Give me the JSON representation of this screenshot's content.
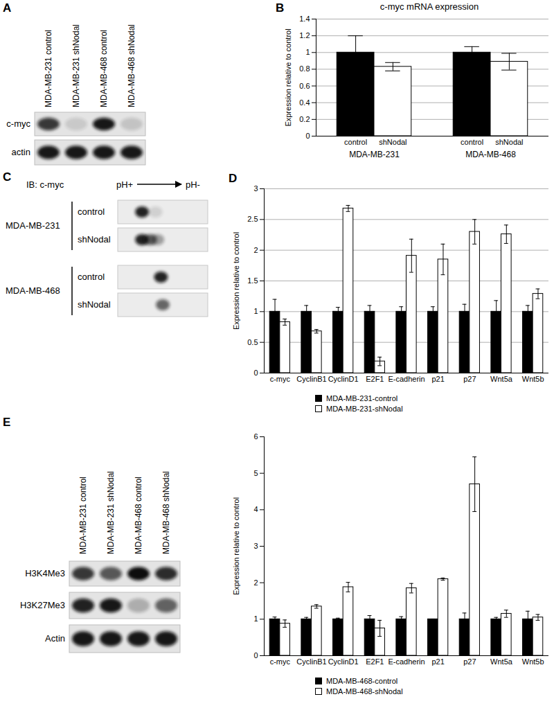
{
  "panel_labels": [
    "A",
    "B",
    "C",
    "D",
    "E"
  ],
  "blots": [
    {
      "type": "lane_blot",
      "lanes": [
        "MDA-MB-231 control",
        "MDA-MB-231 shNodal",
        "MDA-MB-468 control",
        "MDA-MB-468 shNodal"
      ],
      "rows": [
        {
          "label": "c-myc",
          "intensity": [
            0.8,
            0.12,
            0.95,
            0.15
          ]
        },
        {
          "label": "actin",
          "intensity": [
            0.95,
            0.95,
            0.95,
            0.95
          ]
        }
      ]
    },
    {
      "type": "ief_blot",
      "probe": "IB: c-myc",
      "gradient": [
        "pH+",
        "pH-"
      ],
      "groups": [
        {
          "label": "MDA-MB-231",
          "conditions": [
            {
              "label": "control",
              "spots": [
                {
                  "position": 0.27,
                  "intensity": 0.9
                },
                {
                  "position": 0.42,
                  "intensity": 0.12
                }
              ]
            },
            {
              "label": "shNodal",
              "spots": [
                {
                  "position": 0.27,
                  "intensity": 0.9
                },
                {
                  "position": 0.36,
                  "intensity": 0.6
                },
                {
                  "position": 0.44,
                  "intensity": 0.35
                }
              ]
            }
          ]
        },
        {
          "label": "MDA-MB-468",
          "conditions": [
            {
              "label": "control",
              "spots": [
                {
                  "position": 0.48,
                  "intensity": 0.9
                }
              ]
            },
            {
              "label": "shNodal",
              "spots": [
                {
                  "position": 0.5,
                  "intensity": 0.6
                }
              ]
            }
          ]
        }
      ]
    },
    {
      "type": "lane_blot",
      "lanes": [
        "MDA-MB-231 control",
        "MDA-MB-231 shNodal",
        "MDA-MB-468 control",
        "MDA-MB-468 shNodal"
      ],
      "rows": [
        {
          "label": "H3K4Me3",
          "intensity": [
            0.8,
            0.65,
            1.0,
            0.85
          ]
        },
        {
          "label": "H3K27Me3",
          "intensity": [
            0.9,
            0.95,
            0.25,
            0.6
          ]
        },
        {
          "label": "Actin",
          "intensity": [
            0.95,
            0.95,
            0.95,
            0.95
          ]
        }
      ]
    }
  ],
  "chart_data": [
    {
      "type": "bar",
      "title": "c-myc mRNA expression",
      "ylabel": "Expression relative to control",
      "categories": [
        "MDA-MB-231",
        "MDA-MB-468"
      ],
      "series": [
        {
          "name": "control",
          "color": "#000000",
          "values": [
            1,
            1
          ],
          "errors": [
            0.2,
            0.07
          ]
        },
        {
          "name": "shNodal",
          "color": "#ffffff",
          "values": [
            0.83,
            0.89
          ],
          "errors": [
            0.05,
            0.1
          ]
        }
      ],
      "ylim": [
        0,
        1.4
      ],
      "yticks": [
        0,
        0.2,
        0.4,
        0.6,
        0.8,
        1,
        1.2,
        1.4
      ],
      "grid": true
    },
    {
      "type": "bar",
      "ylabel": "Expression relative to control",
      "categories": [
        "c-myc",
        "CyclinB1",
        "CyclinD1",
        "E2F1",
        "E-cadherin",
        "p21",
        "p27",
        "Wnt5a",
        "Wnt5b"
      ],
      "series": [
        {
          "name": "MDA-MB-231-control",
          "color": "#000000",
          "values": [
            1,
            1,
            1,
            1,
            1,
            1,
            1,
            1,
            1
          ],
          "errors": [
            0.2,
            0.1,
            0.07,
            0.1,
            0.08,
            0.08,
            0.12,
            0.18,
            0.1
          ]
        },
        {
          "name": "MDA-MB-231-shNodal",
          "color": "#ffffff",
          "values": [
            0.83,
            0.68,
            2.68,
            0.19,
            1.91,
            1.85,
            2.3,
            2.26,
            1.29
          ],
          "errors": [
            0.05,
            0.03,
            0.05,
            0.07,
            0.27,
            0.25,
            0.2,
            0.15,
            0.08
          ]
        }
      ],
      "ylim": [
        0,
        3
      ],
      "yticks": [
        0,
        0.5,
        1,
        1.5,
        2,
        2.5,
        3
      ],
      "grid": true,
      "legend": "bottom"
    },
    {
      "type": "bar",
      "ylabel": "Expression relative to control",
      "categories": [
        "c-myc",
        "CyclinB1",
        "CyclinD1",
        "E2F1",
        "E-cadherin",
        "p21",
        "p27",
        "Wnt5a",
        "Wnt5b"
      ],
      "series": [
        {
          "name": "MDA-MB-468-control",
          "color": "#000000",
          "values": [
            1,
            1,
            1,
            1,
            1,
            1,
            1,
            1,
            1
          ],
          "errors": [
            0.06,
            0.05,
            0.03,
            0.1,
            0.07,
            0,
            0.17,
            0.05,
            0.22
          ]
        },
        {
          "name": "MDA-MB-468-shNodal",
          "color": "#ffffff",
          "values": [
            0.88,
            1.35,
            1.88,
            0.75,
            1.85,
            2.1,
            4.7,
            1.15,
            1.05
          ],
          "errors": [
            0.1,
            0.05,
            0.13,
            0.22,
            0.13,
            0.03,
            0.75,
            0.1,
            0.08
          ]
        }
      ],
      "ylim": [
        0,
        6
      ],
      "yticks": [
        0,
        1,
        2,
        3,
        4,
        5,
        6
      ],
      "grid": false,
      "legend": "bottom"
    }
  ]
}
